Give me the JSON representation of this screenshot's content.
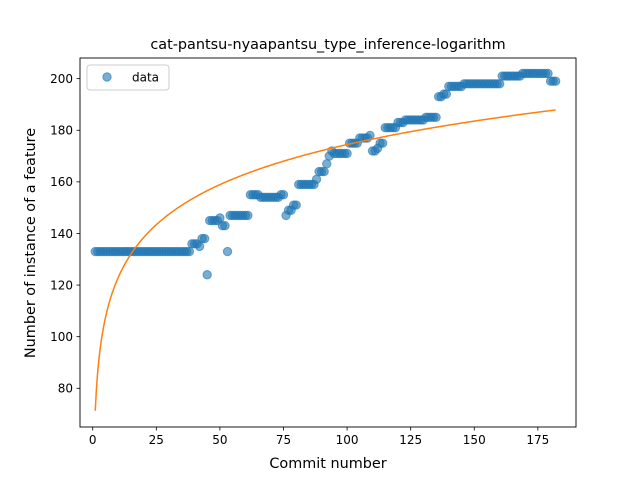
{
  "chart_data": {
    "type": "scatter",
    "title": "cat-pantsu-nyaapantsu_type_inference-logarithm",
    "xlabel": "Commit number",
    "ylabel": "Number of instance of a feature",
    "xlim": [
      -5,
      190
    ],
    "ylim": [
      65,
      208
    ],
    "xticks": [
      0,
      25,
      50,
      75,
      100,
      125,
      150,
      175
    ],
    "yticks": [
      80,
      100,
      120,
      140,
      160,
      180,
      200
    ],
    "legend": {
      "position": "top-left",
      "entries": [
        "data"
      ]
    },
    "grid": false,
    "colors": {
      "data": "#1f77b4",
      "fit": "#ff7f0e"
    },
    "series": [
      {
        "name": "data",
        "kind": "scatter",
        "x": [
          1,
          2,
          3,
          4,
          5,
          6,
          7,
          8,
          9,
          10,
          11,
          12,
          13,
          14,
          15,
          16,
          17,
          18,
          19,
          20,
          21,
          22,
          23,
          24,
          25,
          26,
          27,
          28,
          29,
          30,
          31,
          32,
          33,
          34,
          35,
          36,
          37,
          38,
          39,
          40,
          41,
          42,
          43,
          44,
          45,
          46,
          47,
          48,
          49,
          50,
          51,
          52,
          53,
          54,
          55,
          56,
          57,
          58,
          59,
          60,
          61,
          62,
          63,
          64,
          65,
          66,
          67,
          68,
          69,
          70,
          71,
          72,
          73,
          74,
          75,
          76,
          77,
          78,
          79,
          80,
          81,
          82,
          83,
          84,
          85,
          86,
          87,
          88,
          89,
          90,
          91,
          92,
          93,
          94,
          95,
          96,
          97,
          98,
          99,
          100,
          101,
          102,
          103,
          104,
          105,
          106,
          107,
          108,
          109,
          110,
          111,
          112,
          113,
          114,
          115,
          116,
          117,
          118,
          119,
          120,
          121,
          122,
          123,
          124,
          125,
          126,
          127,
          128,
          129,
          130,
          131,
          132,
          133,
          134,
          135,
          136,
          137,
          138,
          139,
          140,
          141,
          142,
          143,
          144,
          145,
          146,
          147,
          148,
          149,
          150,
          151,
          152,
          153,
          154,
          155,
          156,
          157,
          158,
          159,
          160,
          161,
          162,
          163,
          164,
          165,
          166,
          167,
          168,
          169,
          170,
          171,
          172,
          173,
          174,
          175,
          176,
          177,
          178,
          179,
          180,
          181,
          182
        ],
        "y": [
          133,
          133,
          133,
          133,
          133,
          133,
          133,
          133,
          133,
          133,
          133,
          133,
          133,
          133,
          133,
          133,
          133,
          133,
          133,
          133,
          133,
          133,
          133,
          133,
          133,
          133,
          133,
          133,
          133,
          133,
          133,
          133,
          133,
          133,
          133,
          133,
          133,
          133,
          136,
          136,
          136,
          135,
          138,
          138,
          124,
          145,
          145,
          145,
          145,
          146,
          143,
          143,
          133,
          147,
          147,
          147,
          147,
          147,
          147,
          147,
          147,
          155,
          155,
          155,
          155,
          154,
          154,
          154,
          154,
          154,
          154,
          154,
          154,
          155,
          155,
          147,
          149,
          149,
          151,
          151,
          159,
          159,
          159,
          159,
          159,
          159,
          159,
          161,
          164,
          164,
          164,
          167,
          170,
          172,
          171,
          171,
          171,
          171,
          171,
          171,
          175,
          175,
          175,
          175,
          177,
          177,
          177,
          177,
          178,
          172,
          172,
          173,
          175,
          175,
          181,
          181,
          181,
          181,
          181,
          183,
          183,
          183,
          184,
          184,
          184,
          184,
          184,
          184,
          184,
          184,
          185,
          185,
          185,
          185,
          185,
          193,
          193,
          194,
          194,
          197,
          197,
          197,
          197,
          197,
          197,
          198,
          198,
          198,
          198,
          198,
          198,
          198,
          198,
          198,
          198,
          198,
          198,
          198,
          198,
          198,
          201,
          201,
          201,
          201,
          201,
          201,
          201,
          201,
          202,
          202,
          202,
          202,
          202,
          202,
          202,
          202,
          202,
          202,
          202,
          199,
          199,
          199
        ]
      },
      {
        "name": "",
        "kind": "line",
        "fit": {
          "a": 71.3,
          "b": 22.4,
          "x_start": 1,
          "x_end": 182
        }
      }
    ]
  }
}
